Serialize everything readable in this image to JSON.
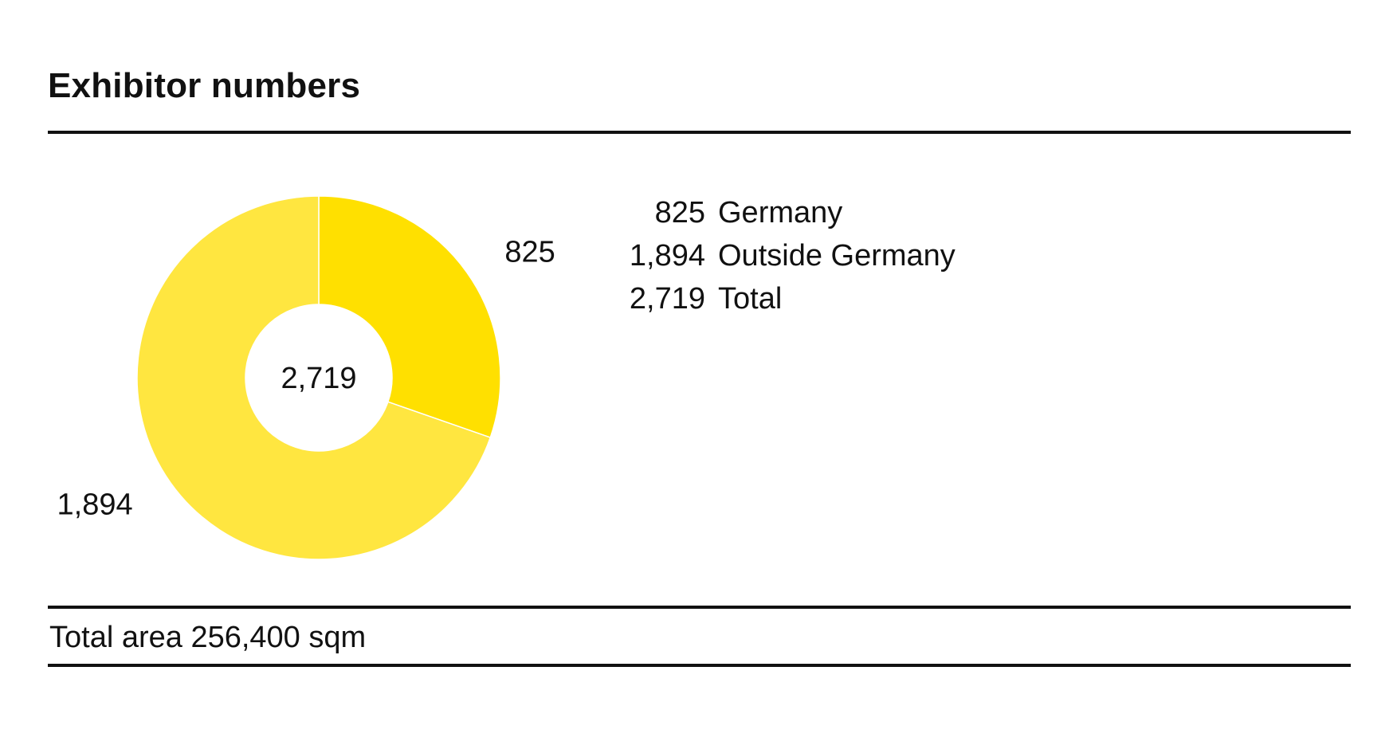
{
  "title": "Exhibitor numbers",
  "chart_data": {
    "type": "pie",
    "donut": true,
    "categories": [
      "Germany",
      "Outside Germany"
    ],
    "values": [
      825,
      1894
    ],
    "total": 2719,
    "center_label": "2,719",
    "value_labels": [
      "825",
      "1,894"
    ],
    "colors": [
      "#FFE000",
      "#FFE640"
    ],
    "legend_placement": "right"
  },
  "legend": [
    {
      "value": "825",
      "label": "Germany"
    },
    {
      "value": "1,894",
      "label": "Outside Germany"
    },
    {
      "value": "2,719",
      "label": "Total"
    }
  ],
  "footer": "Total area 256,400 sqm"
}
